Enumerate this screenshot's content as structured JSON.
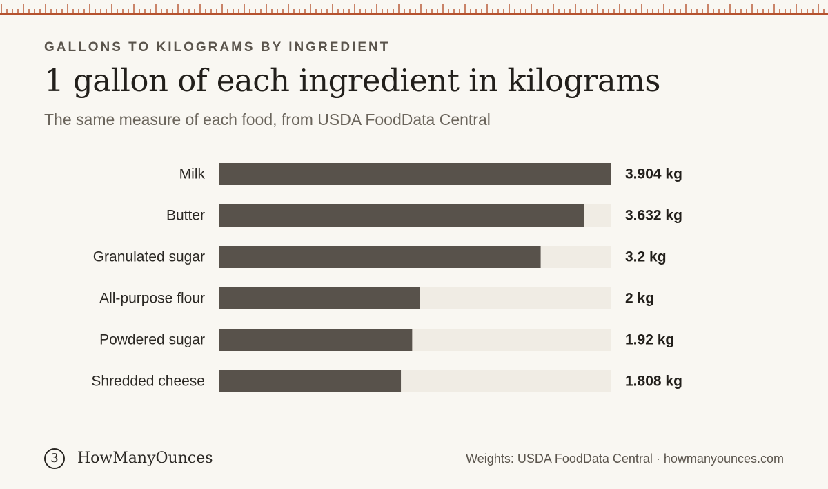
{
  "header": {
    "eyebrow": "GALLONS TO KILOGRAMS BY INGREDIENT",
    "title": "1 gallon of each ingredient in kilograms",
    "subtitle": "The same measure of each food, from USDA FoodData Central"
  },
  "chart_data": {
    "type": "bar",
    "orientation": "horizontal",
    "categories": [
      "Milk",
      "Butter",
      "Granulated sugar",
      "All-purpose flour",
      "Powdered sugar",
      "Shredded cheese"
    ],
    "values": [
      3.904,
      3.632,
      3.2,
      2,
      1.92,
      1.808
    ],
    "value_labels": [
      "3.904 kg",
      "3.632 kg",
      "3.2 kg",
      "2 kg",
      "1.92 kg",
      "1.808 kg"
    ],
    "xlim": [
      0,
      3.904
    ],
    "grid": false,
    "colors": {
      "bar": "#58524b",
      "track": "#f0ece4"
    }
  },
  "footer": {
    "logo_glyph": "3",
    "brand": "HowManyOunces",
    "source": "Weights: USDA FoodData Central · howmanyounces.com"
  },
  "colors": {
    "accent": "#b5522e",
    "background": "#f9f7f2"
  }
}
